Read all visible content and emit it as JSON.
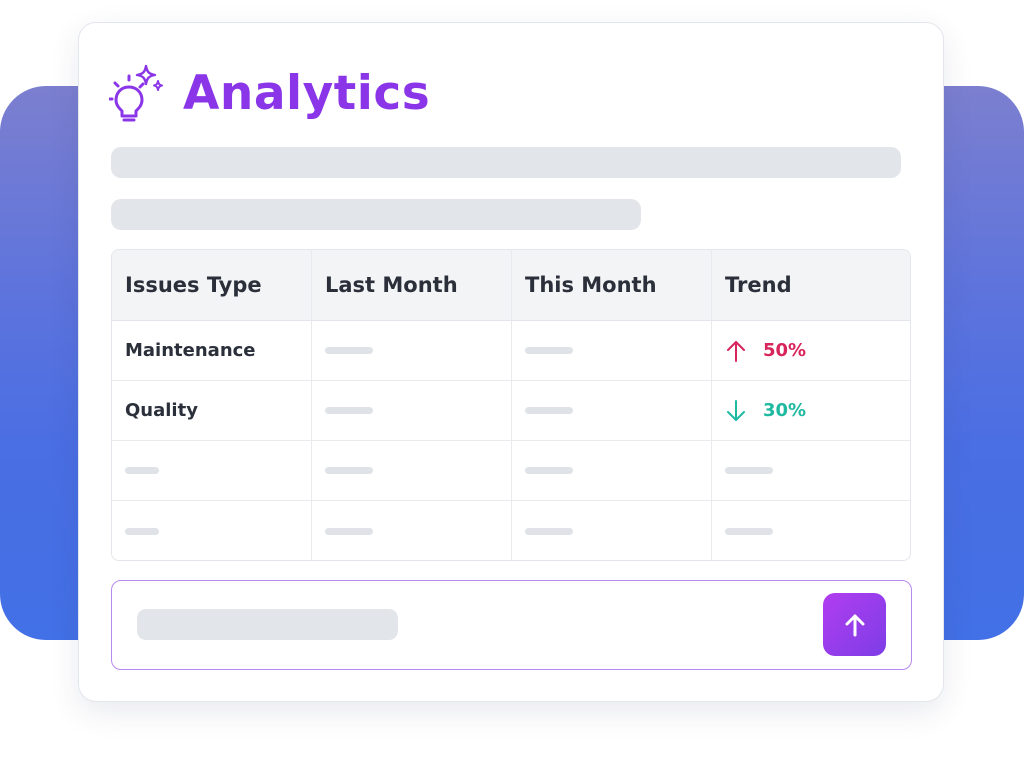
{
  "header": {
    "title": "Analytics",
    "icon": "lightbulb-sparkle-icon",
    "accent_color": "#8a35e8"
  },
  "table": {
    "columns": [
      "Issues Type",
      "Last Month",
      "This Month",
      "Trend"
    ],
    "rows": [
      {
        "issue": "Maintenance",
        "trend": {
          "direction": "up",
          "value": "50%",
          "color": "#d8245a",
          "icon": "arrow-up-icon"
        }
      },
      {
        "issue": "Quality",
        "trend": {
          "direction": "down",
          "value": "30%",
          "color": "#1fb9a1",
          "icon": "arrow-down-icon"
        }
      }
    ]
  },
  "composer": {
    "send_icon": "arrow-up-icon",
    "send_color": "#9b3deb"
  },
  "backdrop_color": "#4a6ee3"
}
